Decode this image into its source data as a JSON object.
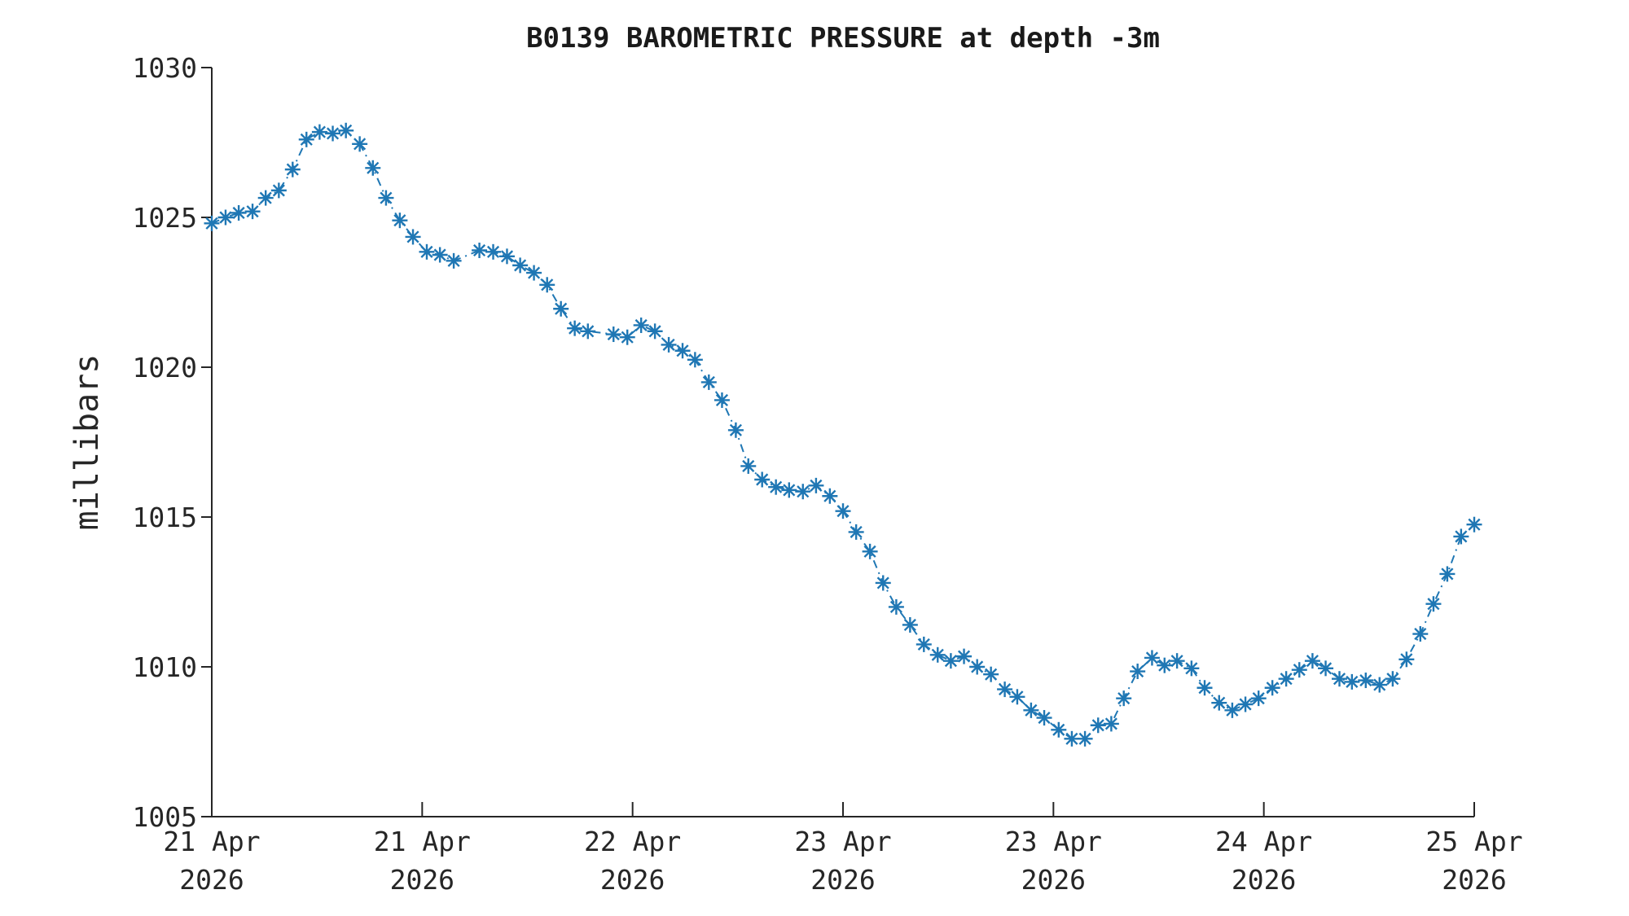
{
  "figure": {
    "background_color": "#ffffff",
    "axis_color": "#262626",
    "title": "B0139 BAROMETRIC PRESSURE at depth -3m"
  },
  "chart_data": {
    "type": "line",
    "title": "B0139 BAROMETRIC PRESSURE at depth -3m",
    "xlabel": "",
    "ylabel": "millibars",
    "line_color": "#1f77b4",
    "line_style": "dash-dot",
    "marker": "asterisk",
    "grid": false,
    "legend": "none",
    "x_unit": "hours since 21 Apr 2026 00:00",
    "xlim": [
      0,
      96
    ],
    "ylim": [
      1005,
      1030
    ],
    "y_ticks": [
      1005,
      1010,
      1015,
      1020,
      1025,
      1030
    ],
    "x_ticks": [
      {
        "hour": 0,
        "line1": "21 Apr",
        "line2": "2026"
      },
      {
        "hour": 16,
        "line1": "21 Apr",
        "line2": "2026"
      },
      {
        "hour": 32,
        "line1": "22 Apr",
        "line2": "2026"
      },
      {
        "hour": 48,
        "line1": "23 Apr",
        "line2": "2026"
      },
      {
        "hour": 64,
        "line1": "23 Apr",
        "line2": "2026"
      },
      {
        "hour": 80,
        "line1": "24 Apr",
        "line2": "2026"
      },
      {
        "hour": 96,
        "line1": "25 Apr",
        "line2": "2026"
      }
    ],
    "points": [
      [
        0.0,
        1024.8
      ],
      [
        1.05,
        1025.0
      ],
      [
        2.05,
        1025.15
      ],
      [
        3.1,
        1025.2
      ],
      [
        4.1,
        1025.65
      ],
      [
        5.1,
        1025.9
      ],
      [
        6.15,
        1026.6
      ],
      [
        7.2,
        1027.6
      ],
      [
        8.2,
        1027.85
      ],
      [
        9.2,
        1027.8
      ],
      [
        10.2,
        1027.9
      ],
      [
        11.25,
        1027.45
      ],
      [
        12.25,
        1026.65
      ],
      [
        13.25,
        1025.65
      ],
      [
        14.3,
        1024.9
      ],
      [
        15.3,
        1024.35
      ],
      [
        16.35,
        1023.85
      ],
      [
        17.35,
        1023.75
      ],
      [
        18.4,
        1023.55
      ],
      [
        20.35,
        1023.9
      ],
      [
        21.4,
        1023.85
      ],
      [
        22.45,
        1023.7
      ],
      [
        23.45,
        1023.4
      ],
      [
        24.5,
        1023.15
      ],
      [
        25.5,
        1022.75
      ],
      [
        26.55,
        1021.95
      ],
      [
        27.6,
        1021.3
      ],
      [
        28.6,
        1021.2
      ],
      [
        30.55,
        1021.1
      ],
      [
        31.6,
        1021.0
      ],
      [
        32.65,
        1021.4
      ],
      [
        33.7,
        1021.2
      ],
      [
        34.75,
        1020.75
      ],
      [
        35.8,
        1020.55
      ],
      [
        36.75,
        1020.25
      ],
      [
        37.8,
        1019.5
      ],
      [
        38.8,
        1018.9
      ],
      [
        39.85,
        1017.9
      ],
      [
        40.8,
        1016.7
      ],
      [
        41.85,
        1016.25
      ],
      [
        42.9,
        1016.0
      ],
      [
        43.9,
        1015.9
      ],
      [
        44.95,
        1015.85
      ],
      [
        45.95,
        1016.05
      ],
      [
        47.0,
        1015.7
      ],
      [
        48.0,
        1015.2
      ],
      [
        49.0,
        1014.5
      ],
      [
        50.05,
        1013.85
      ],
      [
        51.05,
        1012.8
      ],
      [
        52.05,
        1012.0
      ],
      [
        53.1,
        1011.4
      ],
      [
        54.15,
        1010.75
      ],
      [
        55.2,
        1010.4
      ],
      [
        56.2,
        1010.2
      ],
      [
        57.2,
        1010.35
      ],
      [
        58.2,
        1010.0
      ],
      [
        59.25,
        1009.75
      ],
      [
        60.3,
        1009.25
      ],
      [
        61.25,
        1009.0
      ],
      [
        62.3,
        1008.55
      ],
      [
        63.3,
        1008.3
      ],
      [
        64.4,
        1007.9
      ],
      [
        65.4,
        1007.6
      ],
      [
        66.4,
        1007.6
      ],
      [
        67.4,
        1008.05
      ],
      [
        68.4,
        1008.1
      ],
      [
        69.35,
        1008.95
      ],
      [
        70.4,
        1009.85
      ],
      [
        71.5,
        1010.3
      ],
      [
        72.45,
        1010.05
      ],
      [
        73.4,
        1010.2
      ],
      [
        74.5,
        1009.95
      ],
      [
        75.5,
        1009.3
      ],
      [
        76.6,
        1008.8
      ],
      [
        77.6,
        1008.55
      ],
      [
        78.6,
        1008.75
      ],
      [
        79.6,
        1008.95
      ],
      [
        80.65,
        1009.3
      ],
      [
        81.7,
        1009.6
      ],
      [
        82.7,
        1009.9
      ],
      [
        83.7,
        1010.2
      ],
      [
        84.7,
        1009.95
      ],
      [
        85.75,
        1009.6
      ],
      [
        86.7,
        1009.5
      ],
      [
        87.75,
        1009.55
      ],
      [
        88.8,
        1009.4
      ],
      [
        89.8,
        1009.6
      ],
      [
        90.85,
        1010.25
      ],
      [
        91.9,
        1011.1
      ],
      [
        92.9,
        1012.1
      ],
      [
        93.95,
        1013.1
      ],
      [
        95.0,
        1014.35
      ],
      [
        96.0,
        1014.75
      ]
    ]
  }
}
